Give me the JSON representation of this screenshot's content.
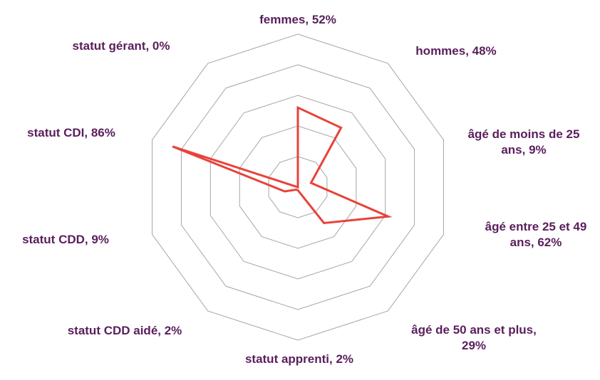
{
  "chart_data": {
    "type": "radar",
    "categories": [
      "femmes, 52%",
      "hommes, 48%",
      "âgé de moins de 25 ans, 9%",
      "âgé entre 25 et 49 ans, 62%",
      "âgé de 50 ans et plus, 29%",
      "statut apprenti, 2%",
      "statut CDD aidé, 2%",
      "statut CDD, 9%",
      "statut CDI, 86%",
      "statut gérant, 0%"
    ],
    "values": [
      52,
      48,
      9,
      62,
      29,
      2,
      2,
      9,
      86,
      0
    ],
    "color": "#e8423a",
    "ylim": [
      0,
      100
    ],
    "yticks": [
      0,
      20,
      40,
      60,
      80,
      100
    ],
    "grid": true
  }
}
